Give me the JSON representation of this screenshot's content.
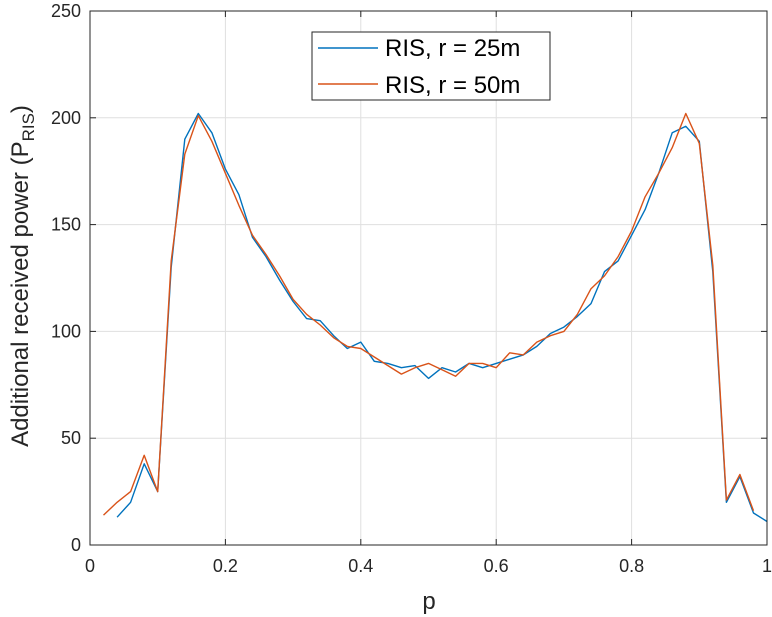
{
  "chart_data": {
    "type": "line",
    "xlabel": "p",
    "ylabel_main": "Additional received power (P",
    "ylabel_sub": "RIS",
    "ylabel_close": ")",
    "xlim": [
      0,
      1
    ],
    "ylim": [
      0,
      250
    ],
    "x_ticks": [
      0,
      0.2,
      0.4,
      0.6,
      0.8,
      1
    ],
    "x_tick_labels": [
      "0",
      "0.2",
      "0.4",
      "0.6",
      "0.8",
      "1"
    ],
    "y_ticks": [
      0,
      50,
      100,
      150,
      200,
      250
    ],
    "y_tick_labels": [
      "0",
      "50",
      "100",
      "150",
      "200",
      "250"
    ],
    "grid": true,
    "legend_position": "top-center",
    "series": [
      {
        "name": "RIS, r = 25m",
        "color": "#0072BD",
        "x": [
          0.04,
          0.06,
          0.08,
          0.1,
          0.12,
          0.14,
          0.16,
          0.18,
          0.2,
          0.22,
          0.24,
          0.26,
          0.28,
          0.3,
          0.32,
          0.34,
          0.36,
          0.38,
          0.4,
          0.42,
          0.44,
          0.46,
          0.48,
          0.5,
          0.52,
          0.54,
          0.56,
          0.58,
          0.6,
          0.62,
          0.64,
          0.66,
          0.68,
          0.7,
          0.72,
          0.74,
          0.76,
          0.78,
          0.8,
          0.82,
          0.84,
          0.86,
          0.88,
          0.9,
          0.92,
          0.94,
          0.96,
          0.98,
          1.0
        ],
        "y": [
          13,
          20,
          38,
          25,
          130,
          190,
          202,
          193,
          176,
          164,
          144,
          135,
          124,
          114,
          106,
          105,
          98,
          92,
          95,
          86,
          85,
          83,
          84,
          78,
          83,
          81,
          85,
          83,
          85,
          87,
          89,
          93,
          99,
          102,
          107,
          113,
          128,
          133,
          145,
          157,
          174,
          193,
          196,
          189,
          128,
          20,
          32,
          15,
          11
        ]
      },
      {
        "name": "RIS, r = 50m",
        "color": "#D95319",
        "x": [
          0.02,
          0.04,
          0.06,
          0.08,
          0.1,
          0.12,
          0.14,
          0.16,
          0.18,
          0.2,
          0.22,
          0.24,
          0.26,
          0.28,
          0.3,
          0.32,
          0.34,
          0.36,
          0.38,
          0.4,
          0.42,
          0.44,
          0.46,
          0.48,
          0.5,
          0.52,
          0.54,
          0.56,
          0.58,
          0.6,
          0.62,
          0.64,
          0.66,
          0.68,
          0.7,
          0.72,
          0.74,
          0.76,
          0.78,
          0.8,
          0.82,
          0.84,
          0.86,
          0.88,
          0.9,
          0.92,
          0.94,
          0.96,
          0.98
        ],
        "y": [
          14,
          20,
          25,
          42,
          25,
          133,
          183,
          201,
          189,
          174,
          159,
          145,
          136,
          126,
          115,
          108,
          103,
          97,
          93,
          92,
          88,
          84,
          80,
          83,
          85,
          82,
          79,
          85,
          85,
          83,
          90,
          89,
          95,
          98,
          100,
          108,
          120,
          126,
          135,
          147,
          163,
          174,
          186,
          202,
          188,
          131,
          21,
          33,
          16
        ]
      }
    ]
  }
}
